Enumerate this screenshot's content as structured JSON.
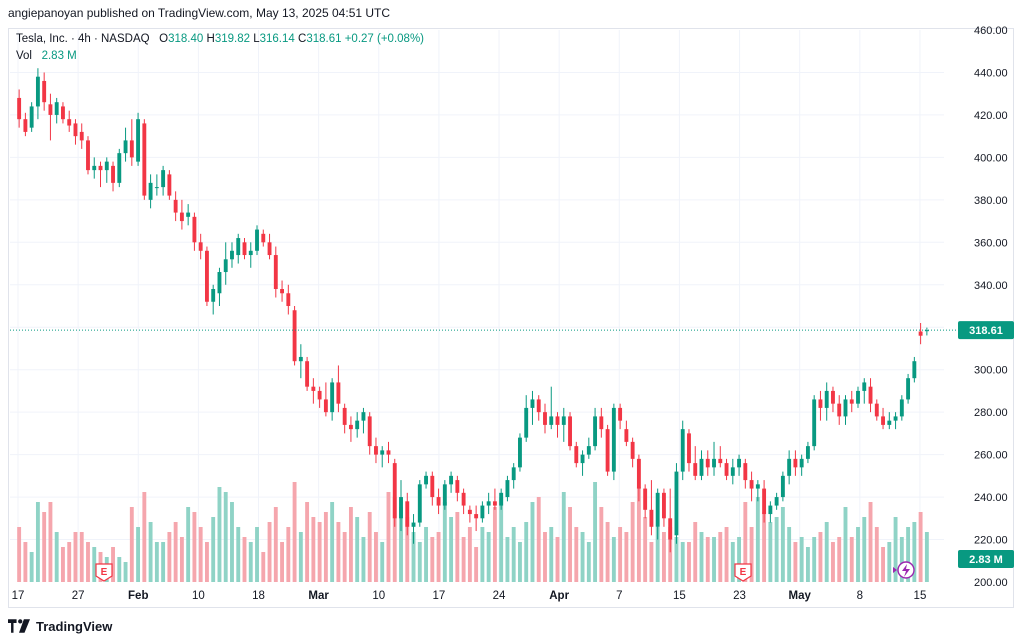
{
  "publisher_line": "angiepanoyan published on TradingView.com, May 13, 2025 04:51 UTC",
  "legend": {
    "symbol_line": "Tesla, Inc. · 4h · NASDAQ",
    "open_label": "O",
    "open": "318.40",
    "high_label": "H",
    "high": "319.82",
    "low_label": "L",
    "low": "316.14",
    "close_label": "C",
    "close": "318.61",
    "change": "+0.27 (+0.08%)",
    "vol_label": "Vol",
    "vol": "2.83 M"
  },
  "price_badge": "318.61",
  "volume_badge": "2.83 M",
  "earnings_marker": "E",
  "footer_brand": "TradingView",
  "colors": {
    "up": "#089981",
    "down": "#f23645",
    "up_vol": "#8fd3c6",
    "down_vol": "#f5a6ad",
    "grid": "#f0f3fa",
    "axis_text": "#131722"
  },
  "icons": {
    "footer_logo": "tradingview-logo-icon",
    "flash": "lightning-icon"
  },
  "chart_data": {
    "type": "candlestick",
    "timeframe": "4h",
    "y_axis": {
      "ticks": [
        200,
        220,
        240,
        260,
        280,
        300,
        320,
        340,
        360,
        380,
        400,
        420,
        440,
        460
      ],
      "range": [
        200,
        460
      ],
      "position": "right"
    },
    "x_axis": {
      "ticks": [
        "17",
        "27",
        "Feb",
        "10",
        "18",
        "Mar",
        "10",
        "17",
        "24",
        "Apr",
        "7",
        "15",
        "23",
        "May",
        "8",
        "15"
      ]
    },
    "last_price": 318.61,
    "earnings_events": [
      "late January",
      "late April"
    ],
    "candles": [
      {
        "o": 428,
        "h": 432,
        "l": 414,
        "c": 418
      },
      {
        "o": 418,
        "h": 421,
        "l": 410,
        "c": 412
      },
      {
        "o": 414,
        "h": 426,
        "l": 412,
        "c": 424
      },
      {
        "o": 424,
        "h": 442,
        "l": 418,
        "c": 438
      },
      {
        "o": 436,
        "h": 440,
        "l": 422,
        "c": 426
      },
      {
        "o": 425,
        "h": 430,
        "l": 408,
        "c": 420
      },
      {
        "o": 420,
        "h": 428,
        "l": 416,
        "c": 426
      },
      {
        "o": 424,
        "h": 426,
        "l": 416,
        "c": 418
      },
      {
        "o": 418,
        "h": 422,
        "l": 412,
        "c": 415
      },
      {
        "o": 416,
        "h": 418,
        "l": 406,
        "c": 410
      },
      {
        "o": 412,
        "h": 416,
        "l": 404,
        "c": 408
      },
      {
        "o": 408,
        "h": 410,
        "l": 392,
        "c": 394
      },
      {
        "o": 394,
        "h": 400,
        "l": 390,
        "c": 396
      },
      {
        "o": 396,
        "h": 398,
        "l": 386,
        "c": 394
      },
      {
        "o": 394,
        "h": 400,
        "l": 388,
        "c": 398
      },
      {
        "o": 396,
        "h": 398,
        "l": 384,
        "c": 388
      },
      {
        "o": 388,
        "h": 404,
        "l": 386,
        "c": 402
      },
      {
        "o": 402,
        "h": 414,
        "l": 398,
        "c": 408
      },
      {
        "o": 408,
        "h": 418,
        "l": 396,
        "c": 400
      },
      {
        "o": 398,
        "h": 421,
        "l": 396,
        "c": 418
      },
      {
        "o": 416,
        "h": 418,
        "l": 380,
        "c": 382
      },
      {
        "o": 380,
        "h": 392,
        "l": 376,
        "c": 388
      },
      {
        "o": 386,
        "h": 392,
        "l": 382,
        "c": 386
      },
      {
        "o": 386,
        "h": 396,
        "l": 382,
        "c": 394
      },
      {
        "o": 392,
        "h": 394,
        "l": 380,
        "c": 382
      },
      {
        "o": 380,
        "h": 384,
        "l": 370,
        "c": 374
      },
      {
        "o": 374,
        "h": 380,
        "l": 366,
        "c": 370
      },
      {
        "o": 372,
        "h": 378,
        "l": 368,
        "c": 374
      },
      {
        "o": 372,
        "h": 374,
        "l": 356,
        "c": 360
      },
      {
        "o": 360,
        "h": 364,
        "l": 352,
        "c": 356
      },
      {
        "o": 356,
        "h": 358,
        "l": 330,
        "c": 332
      },
      {
        "o": 332,
        "h": 340,
        "l": 326,
        "c": 338
      },
      {
        "o": 336,
        "h": 348,
        "l": 330,
        "c": 346
      },
      {
        "o": 346,
        "h": 360,
        "l": 340,
        "c": 352
      },
      {
        "o": 352,
        "h": 360,
        "l": 348,
        "c": 356
      },
      {
        "o": 354,
        "h": 364,
        "l": 350,
        "c": 362
      },
      {
        "o": 360,
        "h": 362,
        "l": 352,
        "c": 354
      },
      {
        "o": 354,
        "h": 360,
        "l": 348,
        "c": 356
      },
      {
        "o": 356,
        "h": 368,
        "l": 354,
        "c": 366
      },
      {
        "o": 364,
        "h": 366,
        "l": 358,
        "c": 360
      },
      {
        "o": 360,
        "h": 364,
        "l": 352,
        "c": 354
      },
      {
        "o": 354,
        "h": 358,
        "l": 334,
        "c": 338
      },
      {
        "o": 338,
        "h": 342,
        "l": 332,
        "c": 336
      },
      {
        "o": 336,
        "h": 340,
        "l": 326,
        "c": 330
      },
      {
        "o": 328,
        "h": 330,
        "l": 302,
        "c": 304
      },
      {
        "o": 304,
        "h": 312,
        "l": 296,
        "c": 306
      },
      {
        "o": 304,
        "h": 306,
        "l": 290,
        "c": 292
      },
      {
        "o": 292,
        "h": 296,
        "l": 284,
        "c": 290
      },
      {
        "o": 290,
        "h": 292,
        "l": 282,
        "c": 286
      },
      {
        "o": 286,
        "h": 294,
        "l": 278,
        "c": 280
      },
      {
        "o": 280,
        "h": 296,
        "l": 276,
        "c": 294
      },
      {
        "o": 294,
        "h": 302,
        "l": 280,
        "c": 284
      },
      {
        "o": 282,
        "h": 284,
        "l": 270,
        "c": 274
      },
      {
        "o": 274,
        "h": 278,
        "l": 266,
        "c": 272
      },
      {
        "o": 272,
        "h": 280,
        "l": 268,
        "c": 276
      },
      {
        "o": 276,
        "h": 282,
        "l": 270,
        "c": 280
      },
      {
        "o": 278,
        "h": 280,
        "l": 260,
        "c": 264
      },
      {
        "o": 264,
        "h": 268,
        "l": 256,
        "c": 260
      },
      {
        "o": 260,
        "h": 264,
        "l": 254,
        "c": 262
      },
      {
        "o": 262,
        "h": 266,
        "l": 256,
        "c": 260
      },
      {
        "o": 256,
        "h": 258,
        "l": 226,
        "c": 230
      },
      {
        "o": 230,
        "h": 248,
        "l": 224,
        "c": 240
      },
      {
        "o": 238,
        "h": 242,
        "l": 222,
        "c": 226
      },
      {
        "o": 226,
        "h": 232,
        "l": 218,
        "c": 228
      },
      {
        "o": 228,
        "h": 248,
        "l": 226,
        "c": 246
      },
      {
        "o": 246,
        "h": 252,
        "l": 244,
        "c": 250
      },
      {
        "o": 250,
        "h": 252,
        "l": 236,
        "c": 240
      },
      {
        "o": 240,
        "h": 244,
        "l": 232,
        "c": 236
      },
      {
        "o": 236,
        "h": 248,
        "l": 234,
        "c": 246
      },
      {
        "o": 246,
        "h": 252,
        "l": 242,
        "c": 250
      },
      {
        "o": 248,
        "h": 250,
        "l": 238,
        "c": 242
      },
      {
        "o": 242,
        "h": 244,
        "l": 232,
        "c": 236
      },
      {
        "o": 234,
        "h": 236,
        "l": 228,
        "c": 232
      },
      {
        "o": 232,
        "h": 236,
        "l": 224,
        "c": 230
      },
      {
        "o": 230,
        "h": 238,
        "l": 228,
        "c": 236
      },
      {
        "o": 236,
        "h": 242,
        "l": 232,
        "c": 238
      },
      {
        "o": 238,
        "h": 244,
        "l": 234,
        "c": 236
      },
      {
        "o": 236,
        "h": 244,
        "l": 234,
        "c": 242
      },
      {
        "o": 240,
        "h": 250,
        "l": 238,
        "c": 248
      },
      {
        "o": 248,
        "h": 256,
        "l": 244,
        "c": 254
      },
      {
        "o": 254,
        "h": 270,
        "l": 252,
        "c": 268
      },
      {
        "o": 268,
        "h": 288,
        "l": 266,
        "c": 282
      },
      {
        "o": 282,
        "h": 290,
        "l": 274,
        "c": 286
      },
      {
        "o": 286,
        "h": 288,
        "l": 276,
        "c": 280
      },
      {
        "o": 280,
        "h": 284,
        "l": 270,
        "c": 274
      },
      {
        "o": 274,
        "h": 292,
        "l": 272,
        "c": 278
      },
      {
        "o": 278,
        "h": 280,
        "l": 268,
        "c": 274
      },
      {
        "o": 274,
        "h": 282,
        "l": 266,
        "c": 278
      },
      {
        "o": 278,
        "h": 280,
        "l": 262,
        "c": 264
      },
      {
        "o": 264,
        "h": 266,
        "l": 254,
        "c": 256
      },
      {
        "o": 256,
        "h": 262,
        "l": 250,
        "c": 260
      },
      {
        "o": 260,
        "h": 268,
        "l": 258,
        "c": 264
      },
      {
        "o": 264,
        "h": 282,
        "l": 262,
        "c": 278
      },
      {
        "o": 278,
        "h": 282,
        "l": 268,
        "c": 272
      },
      {
        "o": 272,
        "h": 274,
        "l": 250,
        "c": 252
      },
      {
        "o": 252,
        "h": 284,
        "l": 248,
        "c": 282
      },
      {
        "o": 282,
        "h": 284,
        "l": 272,
        "c": 276
      },
      {
        "o": 272,
        "h": 276,
        "l": 264,
        "c": 266
      },
      {
        "o": 266,
        "h": 268,
        "l": 254,
        "c": 258
      },
      {
        "o": 258,
        "h": 260,
        "l": 238,
        "c": 244
      },
      {
        "o": 244,
        "h": 246,
        "l": 230,
        "c": 234
      },
      {
        "o": 234,
        "h": 248,
        "l": 222,
        "c": 226
      },
      {
        "o": 226,
        "h": 244,
        "l": 220,
        "c": 242
      },
      {
        "o": 242,
        "h": 244,
        "l": 226,
        "c": 230
      },
      {
        "o": 230,
        "h": 244,
        "l": 214,
        "c": 220
      },
      {
        "o": 222,
        "h": 256,
        "l": 218,
        "c": 252
      },
      {
        "o": 252,
        "h": 276,
        "l": 248,
        "c": 272
      },
      {
        "o": 270,
        "h": 272,
        "l": 252,
        "c": 256
      },
      {
        "o": 256,
        "h": 264,
        "l": 248,
        "c": 250
      },
      {
        "o": 250,
        "h": 262,
        "l": 248,
        "c": 258
      },
      {
        "o": 258,
        "h": 262,
        "l": 250,
        "c": 254
      },
      {
        "o": 254,
        "h": 266,
        "l": 250,
        "c": 258
      },
      {
        "o": 258,
        "h": 264,
        "l": 254,
        "c": 256
      },
      {
        "o": 256,
        "h": 258,
        "l": 248,
        "c": 250
      },
      {
        "o": 250,
        "h": 258,
        "l": 246,
        "c": 254
      },
      {
        "o": 254,
        "h": 260,
        "l": 250,
        "c": 258
      },
      {
        "o": 256,
        "h": 258,
        "l": 244,
        "c": 248
      },
      {
        "o": 248,
        "h": 252,
        "l": 238,
        "c": 244
      },
      {
        "o": 244,
        "h": 248,
        "l": 238,
        "c": 246
      },
      {
        "o": 244,
        "h": 248,
        "l": 228,
        "c": 232
      },
      {
        "o": 232,
        "h": 238,
        "l": 228,
        "c": 236
      },
      {
        "o": 236,
        "h": 242,
        "l": 234,
        "c": 240
      },
      {
        "o": 240,
        "h": 252,
        "l": 238,
        "c": 250
      },
      {
        "o": 250,
        "h": 262,
        "l": 246,
        "c": 258
      },
      {
        "o": 258,
        "h": 262,
        "l": 250,
        "c": 254
      },
      {
        "o": 254,
        "h": 260,
        "l": 250,
        "c": 258
      },
      {
        "o": 258,
        "h": 266,
        "l": 256,
        "c": 264
      },
      {
        "o": 264,
        "h": 288,
        "l": 262,
        "c": 286
      },
      {
        "o": 286,
        "h": 290,
        "l": 276,
        "c": 282
      },
      {
        "o": 282,
        "h": 294,
        "l": 276,
        "c": 290
      },
      {
        "o": 290,
        "h": 292,
        "l": 280,
        "c": 284
      },
      {
        "o": 284,
        "h": 288,
        "l": 274,
        "c": 278
      },
      {
        "o": 278,
        "h": 288,
        "l": 274,
        "c": 286
      },
      {
        "o": 286,
        "h": 290,
        "l": 280,
        "c": 284
      },
      {
        "o": 284,
        "h": 292,
        "l": 282,
        "c": 290
      },
      {
        "o": 290,
        "h": 296,
        "l": 284,
        "c": 294
      },
      {
        "o": 292,
        "h": 296,
        "l": 280,
        "c": 284
      },
      {
        "o": 284,
        "h": 286,
        "l": 276,
        "c": 278
      },
      {
        "o": 278,
        "h": 282,
        "l": 272,
        "c": 274
      },
      {
        "o": 274,
        "h": 280,
        "l": 272,
        "c": 276
      },
      {
        "o": 276,
        "h": 280,
        "l": 272,
        "c": 278
      },
      {
        "o": 278,
        "h": 288,
        "l": 276,
        "c": 286
      },
      {
        "o": 286,
        "h": 298,
        "l": 284,
        "c": 296
      },
      {
        "o": 296,
        "h": 306,
        "l": 294,
        "c": 304
      },
      {
        "o": 318,
        "h": 322,
        "l": 312,
        "c": 316
      },
      {
        "o": 318.4,
        "h": 319.82,
        "l": 316.14,
        "c": 318.61
      }
    ],
    "volume": [
      0.55,
      0.4,
      0.3,
      0.8,
      0.7,
      0.8,
      0.5,
      0.35,
      0.4,
      0.5,
      0.5,
      0.4,
      0.35,
      0.3,
      0.25,
      0.35,
      0.25,
      0.2,
      0.75,
      0.55,
      0.9,
      0.6,
      0.4,
      0.4,
      0.5,
      0.6,
      0.45,
      0.75,
      0.7,
      0.55,
      0.4,
      0.65,
      0.95,
      0.9,
      0.8,
      0.55,
      0.45,
      0.4,
      0.55,
      0.3,
      0.6,
      0.75,
      0.4,
      0.55,
      1.0,
      0.5,
      0.8,
      0.65,
      0.6,
      0.7,
      0.8,
      0.6,
      0.5,
      0.75,
      0.65,
      0.45,
      0.7,
      0.5,
      0.4,
      0.9,
      0.85,
      0.75,
      0.65,
      0.5,
      0.4,
      0.55,
      0.45,
      0.5,
      0.8,
      0.65,
      0.7,
      0.45,
      0.55,
      0.35,
      0.55,
      0.5,
      0.75,
      0.85,
      0.45,
      0.55,
      0.4,
      0.6,
      0.8,
      0.85,
      0.5,
      0.55,
      0.45,
      0.9,
      0.75,
      0.55,
      0.5,
      0.4,
      1.0,
      0.75,
      0.6,
      0.45,
      0.55,
      0.5,
      0.8,
      0.95,
      0.65,
      0.4,
      0.55,
      0.5,
      0.55,
      0.45,
      0.4,
      0.4,
      0.6,
      0.5,
      0.45,
      0.45,
      0.5,
      0.55,
      0.4,
      0.45,
      0.8,
      0.55,
      0.85,
      0.7,
      0.6,
      0.65,
      0.75,
      0.55,
      0.4,
      0.45,
      0.35,
      0.45,
      0.5,
      0.6,
      0.4,
      0.45,
      0.75,
      0.45,
      0.55,
      0.65,
      0.8,
      0.55,
      0.35,
      0.4,
      0.65,
      0.45,
      0.55,
      0.6,
      0.7,
      0.5
    ]
  }
}
